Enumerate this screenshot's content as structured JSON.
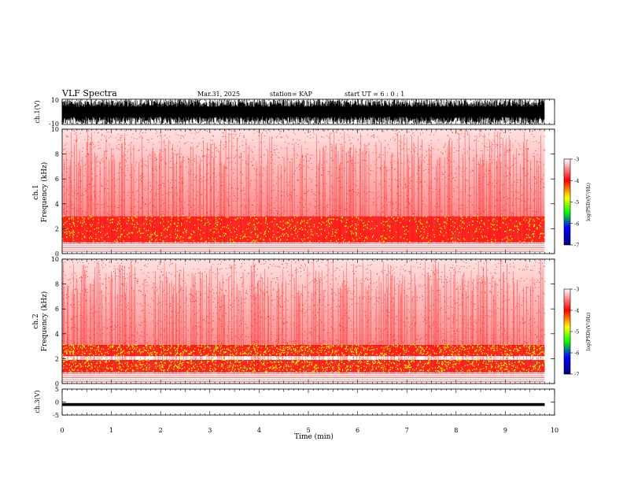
{
  "header": {
    "title": "VLF Spectra",
    "date": "Mar.31, 2025",
    "station": "station= KAP",
    "start": "start  UT =   6 : 0  : 1"
  },
  "chart_data": [
    {
      "type": "line",
      "panel": "ch1-waveform",
      "ylabel": "ch.1(V)",
      "ylim": [
        -10,
        10
      ],
      "yticks": [
        "10",
        "-10"
      ],
      "xlim": [
        0,
        10
      ],
      "description_of_signal": "dense noise saturating between about -10 and 10 V across 0 to 9.8 min"
    },
    {
      "type": "heatmap",
      "panel": "ch1-spectrogram",
      "ylabel_top": "ch.1",
      "ylabel": "Frequency (kHz)",
      "ylim": [
        0,
        10
      ],
      "yticks": [
        "0",
        "2",
        "4",
        "6",
        "8",
        "10"
      ],
      "xlim": [
        0,
        10
      ],
      "data_end_min": 9.8,
      "bands": [
        {
          "f_low": 0.9,
          "f_high": 3.0,
          "level": "high (-4 to -5)"
        },
        {
          "f_low": 3.0,
          "f_high": 10.0,
          "level": "moderate (-3 to -4)"
        }
      ],
      "colorbar": {
        "label": "log(PSD)(V²/Hz)",
        "ticks": [
          "-3",
          "-4",
          "-5",
          "-6",
          "-7"
        ],
        "range": [
          -7,
          -3
        ],
        "colors": [
          "#ffffff",
          "#ff0000",
          "#ffff00",
          "#00ff00",
          "#0000ff",
          "#000080"
        ]
      }
    },
    {
      "type": "heatmap",
      "panel": "ch2-spectrogram",
      "ylabel_top": "ch.2",
      "ylabel": "Frequency (kHz)",
      "ylim": [
        0,
        10
      ],
      "yticks": [
        "0",
        "2",
        "4",
        "6",
        "8",
        "10"
      ],
      "xlim": [
        0,
        10
      ],
      "data_end_min": 9.8,
      "bands": [
        {
          "f_low": 0.9,
          "f_high": 1.9,
          "level": "high (-4 to -5)"
        },
        {
          "f_low": 2.2,
          "f_high": 3.1,
          "level": "high (-4 to -5)"
        },
        {
          "f_low": 3.1,
          "f_high": 10.0,
          "level": "moderate (-3 to -4)"
        }
      ],
      "colorbar": {
        "label": "log(PSD)(V²/Hz)",
        "ticks": [
          "-3",
          "-4",
          "-5",
          "-6",
          "-7"
        ],
        "range": [
          -7,
          -3
        ],
        "colors": [
          "#ffffff",
          "#ff0000",
          "#ffff00",
          "#00ff00",
          "#0000ff",
          "#000080"
        ]
      }
    },
    {
      "type": "line",
      "panel": "ch3-waveform",
      "ylabel": "ch.3(V)",
      "ylim": [
        -5,
        5
      ],
      "yticks": [
        "5",
        "0",
        "-5"
      ],
      "xlim": [
        0,
        10
      ],
      "description_of_signal": "narrow band around -1 V from 0 to 9.8 min"
    }
  ],
  "x_axis": {
    "label": "Time (min)",
    "ticks": [
      "0",
      "1",
      "2",
      "3",
      "4",
      "5",
      "6",
      "7",
      "8",
      "9",
      "10"
    ]
  },
  "colors": {
    "noise_red": "#ff0000",
    "band_yellow": "#ffff00",
    "band_green": "#33cc33",
    "axis": "#000000"
  }
}
